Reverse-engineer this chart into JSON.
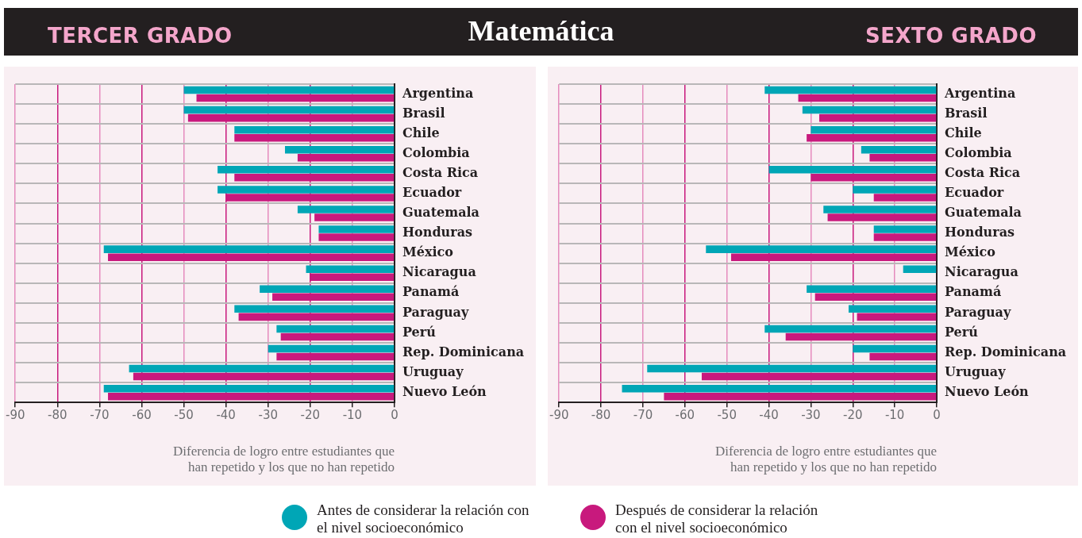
{
  "chart_data": [
    {
      "type": "bar",
      "orientation": "horizontal",
      "title": "TERCER GRADO",
      "annotations": [
        "Matemática"
      ],
      "xlabel": "Diferencia de logro entre estudiantes que\nhan repetido y los que no han repetido",
      "categories": [
        "Argentina",
        "Brasil",
        "Chile",
        "Colombia",
        "Costa Rica",
        "Ecuador",
        "Guatemala",
        "Honduras",
        "México",
        "Nicaragua",
        "Panamá",
        "Paraguay",
        "Perú",
        "Rep. Dominicana",
        "Uruguay",
        "Nuevo León"
      ],
      "series": [
        {
          "name": "Antes de considerar la relación con el nivel socioeconómico",
          "color": "#00a6b6",
          "values": [
            -50,
            -50,
            -38,
            -26,
            -42,
            -42,
            -23,
            -18,
            -69,
            -21,
            -32,
            -38,
            -28,
            -30,
            -63,
            -69
          ]
        },
        {
          "name": "Después de considerar la relación con el nivel socioeconómico",
          "color": "#c8197d",
          "values": [
            -47,
            -49,
            -38,
            -23,
            -38,
            -40,
            -19,
            -18,
            -68,
            -20,
            -29,
            -37,
            -27,
            -28,
            -62,
            -68
          ]
        }
      ],
      "xlim": [
        -90,
        0
      ],
      "xticks": [
        -90,
        -80,
        -70,
        -60,
        -50,
        -40,
        -30,
        -20,
        -10,
        0
      ],
      "grid": true,
      "legend": "bottom"
    },
    {
      "type": "bar",
      "orientation": "horizontal",
      "title": "SEXTO GRADO",
      "xlabel": "Diferencia de logro entre estudiantes que\nhan repetido y los que no han repetido",
      "categories": [
        "Argentina",
        "Brasil",
        "Chile",
        "Colombia",
        "Costa Rica",
        "Ecuador",
        "Guatemala",
        "Honduras",
        "México",
        "Nicaragua",
        "Panamá",
        "Paraguay",
        "Perú",
        "Rep. Dominicana",
        "Uruguay",
        "Nuevo León"
      ],
      "series": [
        {
          "color": "#00a6b6",
          "values": [
            -41,
            -32,
            -30,
            -18,
            -40,
            -20,
            -27,
            -15,
            -55,
            -8,
            -31,
            -21,
            -41,
            -20,
            -69,
            -75
          ]
        },
        {
          "color": "#c8197d",
          "values": [
            -33,
            -28,
            -31,
            -16,
            -30,
            -15,
            -26,
            -15,
            -49,
            null,
            -29,
            -19,
            -36,
            -16,
            -56,
            -65
          ]
        }
      ],
      "xlim": [
        -90,
        0
      ],
      "xticks": [
        -90,
        -80,
        -70,
        -60,
        -50,
        -40,
        -30,
        -20,
        -10,
        0
      ],
      "grid": true
    }
  ]
}
